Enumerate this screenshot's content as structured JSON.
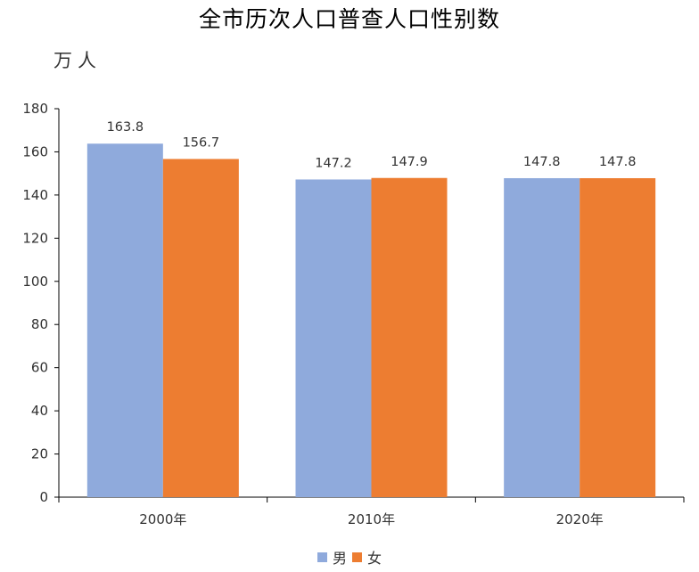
{
  "chart_data": {
    "type": "bar",
    "title": "全市历次人口普查人口性别数",
    "unit": "万人",
    "categories": [
      "2000年",
      "2010年",
      "2020年"
    ],
    "series": [
      {
        "name": "男",
        "color": "#8FAADC",
        "values": [
          163.8,
          147.2,
          147.8
        ]
      },
      {
        "name": "女",
        "color": "#ED7D31",
        "values": [
          156.7,
          147.9,
          147.8
        ]
      }
    ],
    "ylim": [
      0,
      180
    ],
    "yticks": [
      0,
      20,
      40,
      60,
      80,
      100,
      120,
      140,
      160,
      180
    ],
    "grid": false,
    "legend": "bottom"
  }
}
